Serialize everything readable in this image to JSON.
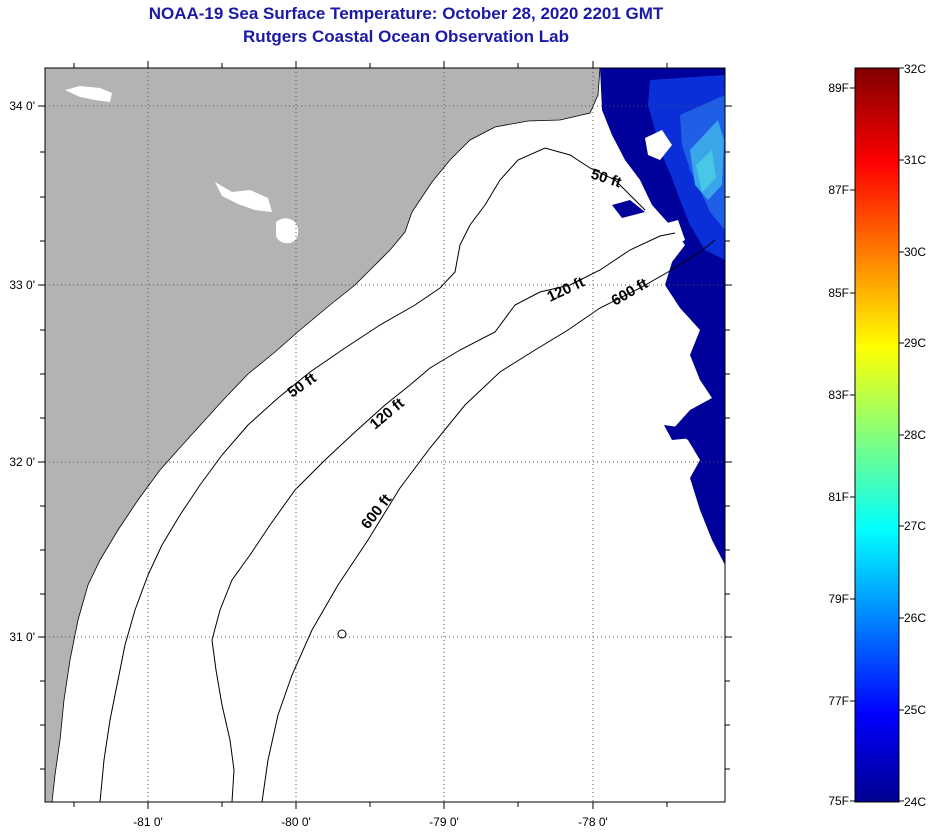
{
  "header": {
    "title": "NOAA-19 Sea Surface Temperature:  October 28, 2020 2201 GMT",
    "subtitle": "Rutgers Coastal Ocean Observation Lab"
  },
  "map": {
    "longitude_labels": [
      "-81 0'",
      "-80 0'",
      "-79 0'",
      "-78 0'"
    ],
    "latitude_labels": [
      "34 0'",
      "33 0'",
      "32 0'",
      "31 0'"
    ],
    "contour_labels": [
      "50 ft",
      "50 ft",
      "120 ft",
      "120 ft",
      "600 ft",
      "600 ft"
    ],
    "colors": {
      "land": "#b3b3b3",
      "water_cold": "#00009a",
      "water_mid": "#0a2fd8",
      "water_warm": "#46c8e6"
    }
  },
  "colorbar": {
    "fahrenheit_labels": [
      "89F",
      "87F",
      "85F",
      "83F",
      "81F",
      "79F",
      "77F",
      "75F"
    ],
    "celsius_labels": [
      "32C",
      "31C",
      "30C",
      "29C",
      "28C",
      "27C",
      "26C",
      "25C",
      "24C"
    ]
  }
}
